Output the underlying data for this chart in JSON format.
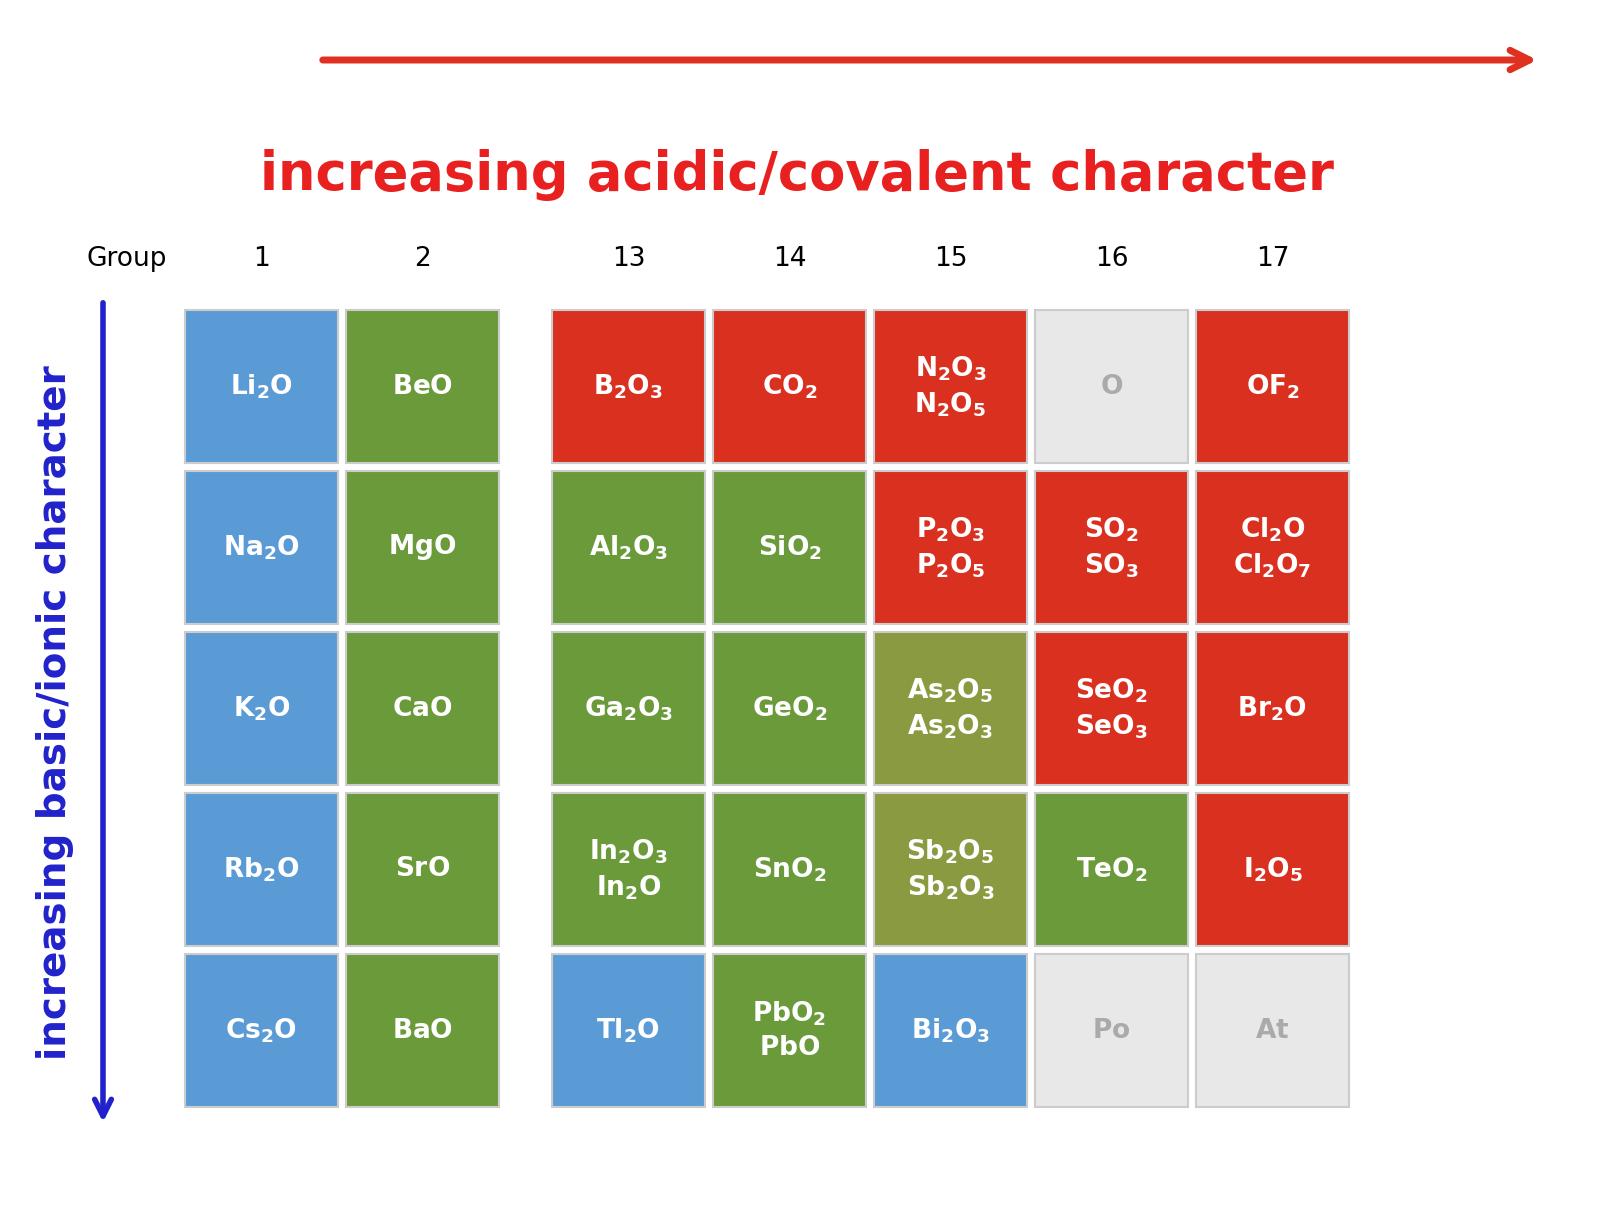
{
  "title_top": "increasing acidic/covalent character",
  "title_left": "increasing basic/ionic character",
  "title_color_top": "#e82020",
  "title_color_left": "#2222cc",
  "background_color": "#ffffff",
  "cells": [
    {
      "row": 0,
      "col": 0,
      "text": "$\\mathbf{Li_2O}$",
      "color": "#5b9bd5",
      "text_color": "#ffffff"
    },
    {
      "row": 0,
      "col": 1,
      "text": "$\\mathbf{BeO}$",
      "color": "#6a9a3a",
      "text_color": "#ffffff"
    },
    {
      "row": 0,
      "col": 3,
      "text": "$\\mathbf{B_2O_3}$",
      "color": "#d93020",
      "text_color": "#ffffff"
    },
    {
      "row": 0,
      "col": 4,
      "text": "$\\mathbf{CO_2}$",
      "color": "#d93020",
      "text_color": "#ffffff"
    },
    {
      "row": 0,
      "col": 5,
      "text": "$\\mathbf{N_2O_3}$\n$\\mathbf{N_2O_5}$",
      "color": "#d93020",
      "text_color": "#ffffff"
    },
    {
      "row": 0,
      "col": 6,
      "text": "$\\mathbf{O}$",
      "color": "#e8e8e8",
      "text_color": "#aaaaaa"
    },
    {
      "row": 0,
      "col": 7,
      "text": "$\\mathbf{OF_2}$",
      "color": "#d93020",
      "text_color": "#ffffff"
    },
    {
      "row": 1,
      "col": 0,
      "text": "$\\mathbf{Na_2O}$",
      "color": "#5b9bd5",
      "text_color": "#ffffff"
    },
    {
      "row": 1,
      "col": 1,
      "text": "$\\mathbf{MgO}$",
      "color": "#6a9a3a",
      "text_color": "#ffffff"
    },
    {
      "row": 1,
      "col": 3,
      "text": "$\\mathbf{Al_2O_3}$",
      "color": "#6a9a3a",
      "text_color": "#ffffff"
    },
    {
      "row": 1,
      "col": 4,
      "text": "$\\mathbf{SiO_2}$",
      "color": "#6a9a3a",
      "text_color": "#ffffff"
    },
    {
      "row": 1,
      "col": 5,
      "text": "$\\mathbf{P_2O_3}$\n$\\mathbf{P_2O_5}$",
      "color": "#d93020",
      "text_color": "#ffffff"
    },
    {
      "row": 1,
      "col": 6,
      "text": "$\\mathbf{SO_2}$\n$\\mathbf{SO_3}$",
      "color": "#d93020",
      "text_color": "#ffffff"
    },
    {
      "row": 1,
      "col": 7,
      "text": "$\\mathbf{Cl_2O}$\n$\\mathbf{Cl_2O_7}$",
      "color": "#d93020",
      "text_color": "#ffffff"
    },
    {
      "row": 2,
      "col": 0,
      "text": "$\\mathbf{K_2O}$",
      "color": "#5b9bd5",
      "text_color": "#ffffff"
    },
    {
      "row": 2,
      "col": 1,
      "text": "$\\mathbf{CaO}$",
      "color": "#6a9a3a",
      "text_color": "#ffffff"
    },
    {
      "row": 2,
      "col": 3,
      "text": "$\\mathbf{Ga_2O_3}$",
      "color": "#6a9a3a",
      "text_color": "#ffffff"
    },
    {
      "row": 2,
      "col": 4,
      "text": "$\\mathbf{GeO_2}$",
      "color": "#6a9a3a",
      "text_color": "#ffffff"
    },
    {
      "row": 2,
      "col": 5,
      "text": "$\\mathbf{As_2O_5}$\n$\\mathbf{As_2O_3}$",
      "color": "#8a9a40",
      "text_color": "#ffffff"
    },
    {
      "row": 2,
      "col": 6,
      "text": "$\\mathbf{SeO_2}$\n$\\mathbf{SeO_3}$",
      "color": "#d93020",
      "text_color": "#ffffff"
    },
    {
      "row": 2,
      "col": 7,
      "text": "$\\mathbf{Br_2O}$",
      "color": "#d93020",
      "text_color": "#ffffff"
    },
    {
      "row": 3,
      "col": 0,
      "text": "$\\mathbf{Rb_2O}$",
      "color": "#5b9bd5",
      "text_color": "#ffffff"
    },
    {
      "row": 3,
      "col": 1,
      "text": "$\\mathbf{SrO}$",
      "color": "#6a9a3a",
      "text_color": "#ffffff"
    },
    {
      "row": 3,
      "col": 3,
      "text": "$\\mathbf{In_2O_3}$\n$\\mathbf{In_2O}$",
      "color": "#6a9a3a",
      "text_color": "#ffffff"
    },
    {
      "row": 3,
      "col": 4,
      "text": "$\\mathbf{SnO_2}$",
      "color": "#6a9a3a",
      "text_color": "#ffffff"
    },
    {
      "row": 3,
      "col": 5,
      "text": "$\\mathbf{Sb_2O_5}$\n$\\mathbf{Sb_2O_3}$",
      "color": "#8a9a40",
      "text_color": "#ffffff"
    },
    {
      "row": 3,
      "col": 6,
      "text": "$\\mathbf{TeO_2}$",
      "color": "#6a9a3a",
      "text_color": "#ffffff"
    },
    {
      "row": 3,
      "col": 7,
      "text": "$\\mathbf{I_2O_5}$",
      "color": "#d93020",
      "text_color": "#ffffff"
    },
    {
      "row": 4,
      "col": 0,
      "text": "$\\mathbf{Cs_2O}$",
      "color": "#5b9bd5",
      "text_color": "#ffffff"
    },
    {
      "row": 4,
      "col": 1,
      "text": "$\\mathbf{BaO}$",
      "color": "#6a9a3a",
      "text_color": "#ffffff"
    },
    {
      "row": 4,
      "col": 3,
      "text": "$\\mathbf{Tl_2O}$",
      "color": "#5b9bd5",
      "text_color": "#ffffff"
    },
    {
      "row": 4,
      "col": 4,
      "text": "$\\mathbf{PbO_2}$\n$\\mathbf{PbO}$",
      "color": "#6a9a3a",
      "text_color": "#ffffff"
    },
    {
      "row": 4,
      "col": 5,
      "text": "$\\mathbf{Bi_2O_3}$",
      "color": "#5b9bd5",
      "text_color": "#ffffff"
    },
    {
      "row": 4,
      "col": 6,
      "text": "$\\mathbf{Po}$",
      "color": "#e8e8e8",
      "text_color": "#aaaaaa"
    },
    {
      "row": 4,
      "col": 7,
      "text": "$\\mathbf{At}$",
      "color": "#e8e8e8",
      "text_color": "#aaaaaa"
    }
  ],
  "group_labels": [
    {
      "text": "Group",
      "col": -1
    },
    {
      "text": "1",
      "col": 0
    },
    {
      "text": "2",
      "col": 1
    },
    {
      "text": "13",
      "col": 3
    },
    {
      "text": "14",
      "col": 4
    },
    {
      "text": "15",
      "col": 5
    },
    {
      "text": "16",
      "col": 6
    },
    {
      "text": "17",
      "col": 7
    }
  ]
}
